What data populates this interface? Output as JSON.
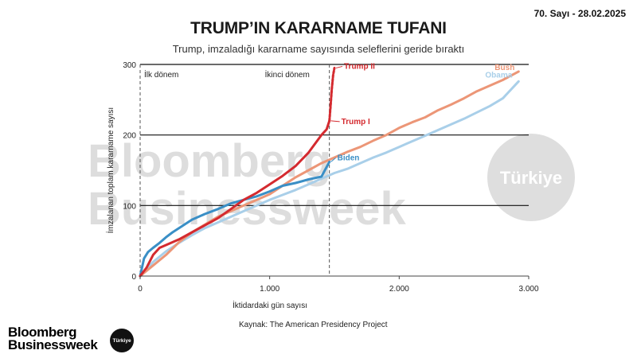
{
  "header": {
    "issue": "70. Sayı - 28.02.2025",
    "title": "TRUMP’IN KARARNAME TUFANI",
    "subtitle": "Trump, imzaladığı kararname sayısında seleflerini geride bıraktı"
  },
  "source": "Kaynak: The American Presidency Project",
  "watermark": {
    "line1": "Bloomberg",
    "line2": "Businessweek",
    "badge": "Türkiye"
  },
  "logo": {
    "line1": "Bloomberg",
    "line2": "Businessweek",
    "badge": "Türkiye"
  },
  "colors": {
    "trump": "#d42a2f",
    "biden": "#3a8fc6",
    "bush": "#ec9677",
    "obama": "#a9cfe9",
    "grid": "#111111",
    "axis": "#444444"
  },
  "chart_data": {
    "type": "line",
    "title": "TRUMP’IN KARARNAME TUFANI",
    "subtitle": "Trump, imzaladığı kararname sayısında seleflerini geride bıraktı",
    "xlabel": "İktidardaki gün sayısı",
    "ylabel": "İmzalanan toplam kararname sayısı",
    "xlim": [
      0,
      3000
    ],
    "ylim": [
      0,
      300
    ],
    "x_ticks": [
      0,
      1000,
      2000,
      3000
    ],
    "x_tick_labels": [
      "0",
      "1.000",
      "2.000",
      "3.000"
    ],
    "y_ticks": [
      0,
      100,
      200,
      300
    ],
    "y_tick_labels": [
      "0",
      "100",
      "200",
      "300"
    ],
    "grid": "horizontal",
    "annotations": [
      {
        "text": "İlk dönem",
        "x": 0
      },
      {
        "text": "İkinci dönem",
        "x": 1461
      }
    ],
    "series": [
      {
        "name": "Bush",
        "x": [
          0,
          100,
          200,
          300,
          400,
          500,
          600,
          700,
          800,
          900,
          1000,
          1100,
          1200,
          1300,
          1400,
          1500,
          1600,
          1700,
          1800,
          1900,
          2000,
          2100,
          2200,
          2300,
          2400,
          2500,
          2600,
          2700,
          2800,
          2922
        ],
        "y": [
          0,
          15,
          30,
          48,
          62,
          73,
          84,
          92,
          100,
          108,
          116,
          128,
          140,
          150,
          160,
          168,
          176,
          183,
          192,
          200,
          210,
          218,
          225,
          235,
          243,
          252,
          262,
          270,
          278,
          290
        ]
      },
      {
        "name": "Obama",
        "x": [
          0,
          100,
          200,
          300,
          400,
          500,
          600,
          700,
          800,
          900,
          1000,
          1100,
          1200,
          1300,
          1400,
          1500,
          1600,
          1700,
          1800,
          1900,
          2000,
          2100,
          2200,
          2300,
          2400,
          2500,
          2600,
          2700,
          2800,
          2922
        ],
        "y": [
          0,
          20,
          35,
          47,
          58,
          68,
          76,
          84,
          92,
          100,
          108,
          115,
          122,
          130,
          138,
          146,
          152,
          160,
          168,
          175,
          183,
          191,
          199,
          207,
          215,
          223,
          232,
          241,
          252,
          276
        ]
      },
      {
        "name": "Biden",
        "x": [
          0,
          30,
          60,
          100,
          150,
          200,
          250,
          300,
          400,
          500,
          600,
          700,
          800,
          900,
          1000,
          1100,
          1200,
          1300,
          1400,
          1461
        ],
        "y": [
          0,
          25,
          34,
          40,
          47,
          55,
          62,
          68,
          80,
          88,
          95,
          103,
          108,
          113,
          120,
          128,
          132,
          137,
          141,
          162
        ]
      },
      {
        "name": "Trump I",
        "x": [
          0,
          50,
          100,
          150,
          200,
          300,
          400,
          500,
          600,
          700,
          800,
          900,
          1000,
          1100,
          1200,
          1300,
          1400,
          1440,
          1461
        ],
        "y": [
          0,
          12,
          30,
          40,
          44,
          52,
          62,
          72,
          82,
          95,
          108,
          118,
          130,
          142,
          156,
          175,
          200,
          208,
          220
        ]
      },
      {
        "name": "Trump II",
        "x": [
          1461,
          1470,
          1480,
          1490,
          1500
        ],
        "y": [
          220,
          240,
          265,
          285,
          295
        ]
      }
    ]
  }
}
